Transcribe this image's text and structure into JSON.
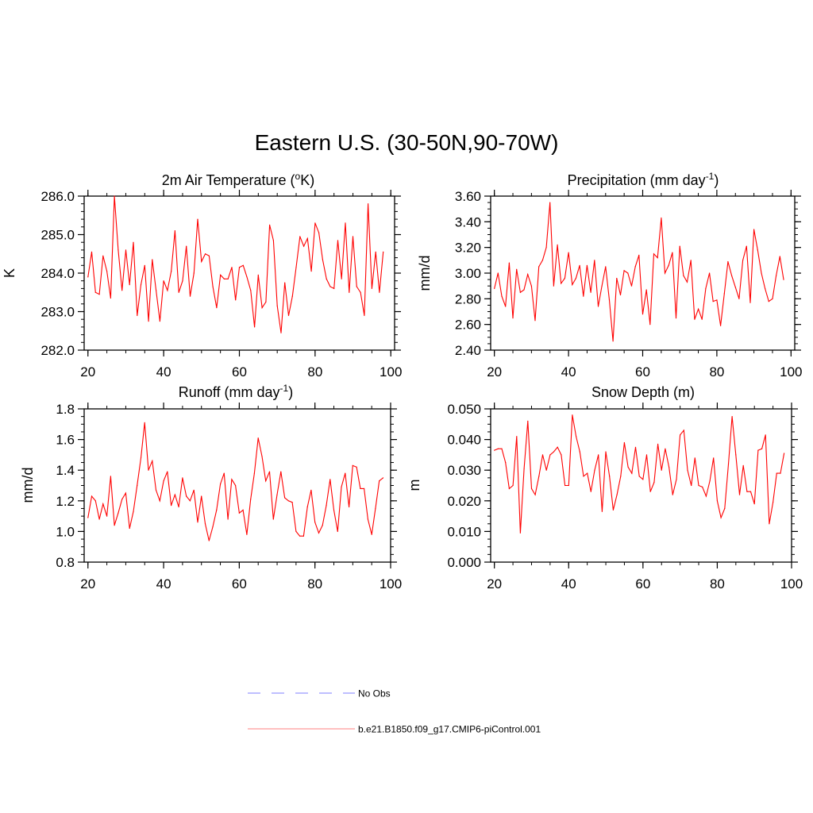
{
  "title": "Eastern U.S. (30-50N,90-70W)",
  "legend": [
    {
      "label": "No Obs",
      "color": "#9999ff",
      "style": "dashed"
    },
    {
      "label": "b.e21.B1850.f09_g17.CMIP6-piControl.001",
      "color": "#ff9999",
      "style": "solid"
    }
  ],
  "chart_data": [
    {
      "type": "line",
      "title": "2m Air Temperature (",
      "title_sup": "o",
      "title_tail": "K)",
      "ylabel": "K",
      "xlim": [
        19,
        101
      ],
      "ylim": [
        282.0,
        286.0
      ],
      "yticks": [
        282.0,
        283.0,
        284.0,
        285.0,
        286.0
      ],
      "ytick_labels": [
        "282.0",
        "283.0",
        "284.0",
        "285.0",
        "286.0"
      ],
      "xticks": [
        20,
        40,
        60,
        80,
        100
      ],
      "xtick_labels": [
        "20",
        "40",
        "60",
        "80",
        "100"
      ],
      "yminor": 0.2,
      "series": [
        {
          "name": "b.e21.B1850.f09_g17.CMIP6-piControl.001",
          "color": "#ff0000",
          "x": [
            20,
            21,
            22,
            23,
            24,
            25,
            26,
            27,
            28,
            29,
            30,
            31,
            32,
            33,
            34,
            35,
            36,
            37,
            38,
            39,
            40,
            41,
            42,
            43,
            44,
            45,
            46,
            47,
            48,
            49,
            50,
            51,
            52,
            53,
            54,
            55,
            56,
            57,
            58,
            59,
            60,
            61,
            62,
            63,
            64,
            65,
            66,
            67,
            68,
            69,
            70,
            71,
            72,
            73,
            74,
            75,
            76,
            77,
            78,
            79,
            80,
            81,
            82,
            83,
            84,
            85,
            86,
            87,
            88,
            89,
            90,
            91,
            92,
            93,
            94,
            95,
            96,
            97,
            98
          ],
          "values": [
            283.9,
            284.55,
            283.5,
            283.45,
            284.45,
            284.05,
            283.35,
            286.0,
            284.6,
            283.55,
            284.6,
            283.7,
            284.8,
            282.9,
            283.7,
            284.2,
            282.75,
            284.35,
            283.55,
            282.75,
            283.8,
            283.55,
            284.05,
            285.1,
            283.5,
            283.8,
            284.7,
            283.4,
            284.0,
            285.4,
            284.3,
            284.5,
            284.45,
            283.65,
            283.1,
            283.95,
            283.85,
            283.85,
            284.15,
            283.3,
            284.15,
            284.2,
            283.9,
            283.55,
            282.6,
            283.95,
            283.1,
            283.25,
            285.25,
            284.85,
            283.15,
            282.45,
            283.75,
            282.9,
            283.4,
            284.15,
            284.95,
            284.7,
            284.9,
            284.05,
            285.3,
            285.05,
            284.35,
            283.85,
            283.65,
            283.6,
            284.85,
            283.85,
            285.3,
            283.5,
            284.95,
            283.65,
            283.5,
            282.9,
            285.8,
            283.6,
            284.55,
            283.5,
            284.55
          ]
        }
      ]
    },
    {
      "type": "line",
      "title": "Precipitation (mm day",
      "title_sup": "-1",
      "title_tail": ")",
      "ylabel": "mm/d",
      "xlim": [
        19,
        101
      ],
      "ylim": [
        2.4,
        3.6
      ],
      "yticks": [
        2.4,
        2.6,
        2.8,
        3.0,
        3.2,
        3.4,
        3.6
      ],
      "ytick_labels": [
        "2.40",
        "2.60",
        "2.80",
        "3.00",
        "3.20",
        "3.40",
        "3.60"
      ],
      "xticks": [
        20,
        40,
        60,
        80,
        100
      ],
      "xtick_labels": [
        "20",
        "40",
        "60",
        "80",
        "100"
      ],
      "yminor": 0.05,
      "series": [
        {
          "name": "b.e21.B1850.f09_g17.CMIP6-piControl.001",
          "color": "#ff0000",
          "x": [
            20,
            21,
            22,
            23,
            24,
            25,
            26,
            27,
            28,
            29,
            30,
            31,
            32,
            33,
            34,
            35,
            36,
            37,
            38,
            39,
            40,
            41,
            42,
            43,
            44,
            45,
            46,
            47,
            48,
            49,
            50,
            51,
            52,
            53,
            54,
            55,
            56,
            57,
            58,
            59,
            60,
            61,
            62,
            63,
            64,
            65,
            66,
            67,
            68,
            69,
            70,
            71,
            72,
            73,
            74,
            75,
            76,
            77,
            78,
            79,
            80,
            81,
            82,
            83,
            84,
            85,
            86,
            87,
            88,
            89,
            90,
            91,
            92,
            93,
            94,
            95,
            96,
            97,
            98
          ],
          "values": [
            2.88,
            3.0,
            2.82,
            2.74,
            3.08,
            2.65,
            3.03,
            2.85,
            2.87,
            2.99,
            2.9,
            2.63,
            3.05,
            3.1,
            3.2,
            3.55,
            2.9,
            3.22,
            2.92,
            2.96,
            3.16,
            2.91,
            2.96,
            3.06,
            2.82,
            3.06,
            2.85,
            3.1,
            2.74,
            2.9,
            3.05,
            2.79,
            2.47,
            2.96,
            2.83,
            3.02,
            3.0,
            2.9,
            3.05,
            3.14,
            2.68,
            2.87,
            2.6,
            3.15,
            3.12,
            3.43,
            3.0,
            3.06,
            3.16,
            2.65,
            3.21,
            2.98,
            2.93,
            3.1,
            2.64,
            2.72,
            2.64,
            2.88,
            3.0,
            2.78,
            2.79,
            2.59,
            2.84,
            3.09,
            2.98,
            2.89,
            2.8,
            3.1,
            3.21,
            2.77,
            3.34,
            3.18,
            3.0,
            2.88,
            2.78,
            2.8,
            2.98,
            3.13,
            2.95
          ]
        }
      ]
    },
    {
      "type": "line",
      "title": "Runoff (mm day",
      "title_sup": "-1",
      "title_tail": ")",
      "ylabel": "mm/d",
      "xlim": [
        19,
        100
      ],
      "ylim": [
        0.8,
        1.8
      ],
      "yticks": [
        0.8,
        1.0,
        1.2,
        1.4,
        1.6,
        1.8
      ],
      "ytick_labels": [
        "0.8",
        "1.0",
        "1.2",
        "1.4",
        "1.6",
        "1.8"
      ],
      "xticks": [
        20,
        40,
        60,
        80,
        100
      ],
      "xtick_labels": [
        "20",
        "40",
        "60",
        "80",
        "100"
      ],
      "yminor": 0.05,
      "series": [
        {
          "name": "b.e21.B1850.f09_g17.CMIP6-piControl.001",
          "color": "#ff0000",
          "x": [
            20,
            21,
            22,
            23,
            24,
            25,
            26,
            27,
            28,
            29,
            30,
            31,
            32,
            33,
            34,
            35,
            36,
            37,
            38,
            39,
            40,
            41,
            42,
            43,
            44,
            45,
            46,
            47,
            48,
            49,
            50,
            51,
            52,
            53,
            54,
            55,
            56,
            57,
            58,
            59,
            60,
            61,
            62,
            63,
            64,
            65,
            66,
            67,
            68,
            69,
            70,
            71,
            72,
            73,
            74,
            75,
            76,
            77,
            78,
            79,
            80,
            81,
            82,
            83,
            84,
            85,
            86,
            87,
            88,
            89,
            90,
            91,
            92,
            93,
            94,
            95,
            96,
            97,
            98
          ],
          "values": [
            1.09,
            1.23,
            1.2,
            1.08,
            1.18,
            1.1,
            1.36,
            1.04,
            1.12,
            1.21,
            1.25,
            1.02,
            1.13,
            1.3,
            1.48,
            1.71,
            1.4,
            1.46,
            1.27,
            1.2,
            1.33,
            1.39,
            1.17,
            1.24,
            1.16,
            1.35,
            1.23,
            1.2,
            1.27,
            1.06,
            1.23,
            1.05,
            0.94,
            1.03,
            1.14,
            1.31,
            1.38,
            1.08,
            1.34,
            1.3,
            1.12,
            1.14,
            0.98,
            1.21,
            1.38,
            1.61,
            1.49,
            1.33,
            1.39,
            1.08,
            1.24,
            1.39,
            1.22,
            1.2,
            1.19,
            1.0,
            0.97,
            0.97,
            1.16,
            1.27,
            1.06,
            0.99,
            1.04,
            1.17,
            1.34,
            1.14,
            1.0,
            1.29,
            1.38,
            1.16,
            1.43,
            1.42,
            1.28,
            1.28,
            1.08,
            0.98,
            1.15,
            1.33,
            1.35
          ]
        }
      ]
    },
    {
      "type": "line",
      "title": "Snow Depth (m)",
      "title_sup": "",
      "title_tail": "",
      "ylabel": "m",
      "xlim": [
        19,
        100
      ],
      "ylim": [
        0.0,
        0.05
      ],
      "yticks": [
        0.0,
        0.01,
        0.02,
        0.03,
        0.04,
        0.05
      ],
      "ytick_labels": [
        "0.000",
        "0.010",
        "0.020",
        "0.030",
        "0.040",
        "0.050"
      ],
      "xticks": [
        20,
        40,
        60,
        80,
        100
      ],
      "xtick_labels": [
        "20",
        "40",
        "60",
        "80",
        "100"
      ],
      "yminor": 0.0025,
      "series": [
        {
          "name": "b.e21.B1850.f09_g17.CMIP6-piControl.001",
          "color": "#ff0000",
          "x": [
            20,
            21,
            22,
            23,
            24,
            25,
            26,
            27,
            28,
            29,
            30,
            31,
            32,
            33,
            34,
            35,
            36,
            37,
            38,
            39,
            40,
            41,
            42,
            43,
            44,
            45,
            46,
            47,
            48,
            49,
            50,
            51,
            52,
            53,
            54,
            55,
            56,
            57,
            58,
            59,
            60,
            61,
            62,
            63,
            64,
            65,
            66,
            67,
            68,
            69,
            70,
            71,
            72,
            73,
            74,
            75,
            76,
            77,
            78,
            79,
            80,
            81,
            82,
            83,
            84,
            85,
            86,
            87,
            88,
            89,
            90,
            91,
            92,
            93,
            94,
            95,
            96,
            97,
            98
          ],
          "values": [
            0.0365,
            0.037,
            0.037,
            0.0325,
            0.024,
            0.025,
            0.041,
            0.0095,
            0.0305,
            0.046,
            0.024,
            0.022,
            0.028,
            0.035,
            0.03,
            0.035,
            0.036,
            0.0375,
            0.035,
            0.025,
            0.025,
            0.048,
            0.041,
            0.036,
            0.028,
            0.029,
            0.023,
            0.03,
            0.035,
            0.0165,
            0.036,
            0.028,
            0.017,
            0.022,
            0.028,
            0.039,
            0.031,
            0.029,
            0.0375,
            0.028,
            0.027,
            0.035,
            0.023,
            0.026,
            0.0385,
            0.03,
            0.037,
            0.031,
            0.022,
            0.027,
            0.0415,
            0.043,
            0.03,
            0.025,
            0.034,
            0.025,
            0.0245,
            0.0215,
            0.0265,
            0.034,
            0.02,
            0.0145,
            0.0175,
            0.032,
            0.0475,
            0.035,
            0.022,
            0.0315,
            0.023,
            0.023,
            0.019,
            0.0365,
            0.037,
            0.0415,
            0.0125,
            0.0195,
            0.029,
            0.029,
            0.0355
          ]
        }
      ]
    }
  ]
}
